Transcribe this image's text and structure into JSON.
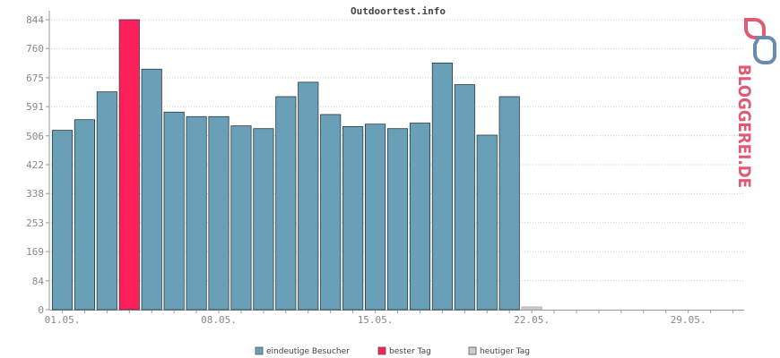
{
  "chart_data": {
    "type": "bar",
    "title": "Outdoortest.info",
    "xlabel": "",
    "ylabel": "",
    "ylim": [
      0,
      844
    ],
    "yticks": [
      0,
      84,
      169,
      253,
      338,
      422,
      506,
      591,
      675,
      760,
      844
    ],
    "day_count": 31,
    "xtick_labels": [
      {
        "day": 1,
        "label": "01.05."
      },
      {
        "day": 8,
        "label": "08.05."
      },
      {
        "day": 15,
        "label": "15.05."
      },
      {
        "day": 22,
        "label": "22.05."
      },
      {
        "day": 29,
        "label": "29.05."
      }
    ],
    "grid": true,
    "series": [
      {
        "name": "eindeutige Besucher",
        "color": "#6a9fb8",
        "values": [
          522,
          553,
          634,
          844,
          700,
          575,
          562,
          562,
          535,
          527,
          620,
          662,
          568,
          533,
          540,
          527,
          543,
          718,
          655,
          508,
          620,
          null,
          null,
          null,
          null,
          null,
          null,
          null,
          null,
          null,
          null
        ]
      },
      {
        "name": "bester Tag",
        "color": "#ff1f5a",
        "values": [
          null,
          null,
          null,
          844,
          null,
          null,
          null,
          null,
          null,
          null,
          null,
          null,
          null,
          null,
          null,
          null,
          null,
          null,
          null,
          null,
          null,
          null,
          null,
          null,
          null,
          null,
          null,
          null,
          null,
          null,
          null
        ]
      },
      {
        "name": "heutiger Tag",
        "color": "#cccccc",
        "values": [
          null,
          null,
          null,
          null,
          null,
          null,
          null,
          null,
          null,
          null,
          null,
          null,
          null,
          null,
          null,
          null,
          null,
          null,
          null,
          null,
          null,
          8,
          null,
          null,
          null,
          null,
          null,
          null,
          null,
          null,
          null
        ]
      }
    ],
    "legend_position": "bottom-center"
  },
  "logo": {
    "text": "BLOGGEREI.DE",
    "primary_color": "#e05a74",
    "secondary_color": "#6a8bb0"
  }
}
